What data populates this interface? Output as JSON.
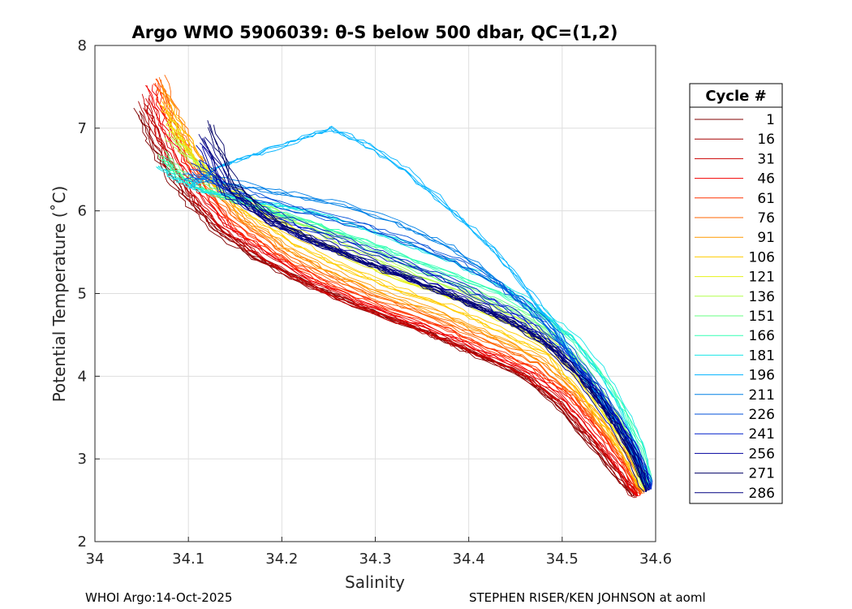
{
  "chart_data": {
    "type": "line",
    "title": "Argo WMO 5906039: θ-S below 500 dbar,  QC=(1,2)",
    "xlabel": "Salinity",
    "ylabel": "Potential Temperature (˚C)",
    "xlim": [
      34,
      34.6
    ],
    "ylim": [
      2,
      8
    ],
    "xticks": [
      34,
      34.1,
      34.2,
      34.3,
      34.4,
      34.5,
      34.6
    ],
    "xtick_labels": [
      "34",
      "34.1",
      "34.2",
      "34.3",
      "34.4",
      "34.5",
      "34.6"
    ],
    "yticks": [
      2,
      3,
      4,
      5,
      6,
      7,
      8
    ],
    "ytick_labels": [
      "2",
      "3",
      "4",
      "5",
      "6",
      "7",
      "8"
    ],
    "grid": true,
    "legend": {
      "title": "Cycle #",
      "placement": "outside-right",
      "entries": [
        {
          "label": "1",
          "color": "#800000"
        },
        {
          "label": "16",
          "color": "#a60000"
        },
        {
          "label": "31",
          "color": "#cc0000"
        },
        {
          "label": "46",
          "color": "#f20000"
        },
        {
          "label": "61",
          "color": "#ff3300"
        },
        {
          "label": "76",
          "color": "#ff6600"
        },
        {
          "label": "91",
          "color": "#ff9900"
        },
        {
          "label": "106",
          "color": "#ffcc00"
        },
        {
          "label": "121",
          "color": "#e6f21a"
        },
        {
          "label": "136",
          "color": "#b3ff4d"
        },
        {
          "label": "151",
          "color": "#66ff80"
        },
        {
          "label": "166",
          "color": "#33ffb3"
        },
        {
          "label": "181",
          "color": "#1ae6e6"
        },
        {
          "label": "196",
          "color": "#00b3ff"
        },
        {
          "label": "211",
          "color": "#0080e6"
        },
        {
          "label": "226",
          "color": "#0050d9"
        },
        {
          "label": "241",
          "color": "#0020cc"
        },
        {
          "label": "256",
          "color": "#00009e"
        },
        {
          "label": "271",
          "color": "#000066"
        },
        {
          "label": "286",
          "color": "#000080"
        }
      ]
    },
    "series": [
      {
        "name": "1",
        "color": "#800000",
        "x": [
          34.045,
          34.06,
          34.08,
          34.1,
          34.13,
          34.17,
          34.22,
          34.28,
          34.35,
          34.4,
          34.45,
          34.49,
          34.52,
          34.55,
          34.575
        ],
        "y": [
          7.2,
          6.8,
          6.4,
          6.1,
          5.75,
          5.45,
          5.15,
          4.85,
          4.55,
          4.3,
          4.05,
          3.7,
          3.3,
          2.9,
          2.55
        ]
      },
      {
        "name": "16",
        "color": "#a60000",
        "x": [
          34.05,
          34.065,
          34.085,
          34.105,
          34.135,
          34.175,
          34.225,
          34.285,
          34.355,
          34.405,
          34.455,
          34.495,
          34.525,
          34.555,
          34.578
        ],
        "y": [
          7.3,
          6.85,
          6.45,
          6.1,
          5.75,
          5.43,
          5.12,
          4.83,
          4.53,
          4.28,
          4.03,
          3.68,
          3.28,
          2.88,
          2.53
        ]
      },
      {
        "name": "31",
        "color": "#cc0000",
        "x": [
          34.055,
          34.07,
          34.09,
          34.11,
          34.14,
          34.18,
          34.23,
          34.29,
          34.36,
          34.41,
          34.46,
          34.5,
          34.53,
          34.56,
          34.58
        ],
        "y": [
          7.4,
          6.9,
          6.5,
          6.15,
          5.78,
          5.45,
          5.12,
          4.82,
          4.52,
          4.28,
          4.03,
          3.7,
          3.3,
          2.9,
          2.55
        ]
      },
      {
        "name": "46",
        "color": "#f20000",
        "x": [
          34.06,
          34.075,
          34.095,
          34.115,
          34.145,
          34.185,
          34.235,
          34.295,
          34.365,
          34.415,
          34.465,
          34.505,
          34.535,
          34.562,
          34.582
        ],
        "y": [
          7.5,
          7.0,
          6.55,
          6.2,
          5.8,
          5.47,
          5.14,
          4.84,
          4.55,
          4.3,
          4.06,
          3.72,
          3.32,
          2.92,
          2.55
        ]
      },
      {
        "name": "61",
        "color": "#ff3300",
        "x": [
          34.065,
          34.08,
          34.1,
          34.12,
          34.15,
          34.19,
          34.24,
          34.3,
          34.37,
          34.42,
          34.47,
          34.51,
          34.54,
          34.565,
          34.584
        ],
        "y": [
          7.55,
          7.05,
          6.6,
          6.22,
          5.83,
          5.5,
          5.17,
          4.88,
          4.6,
          4.35,
          4.1,
          3.75,
          3.35,
          2.95,
          2.57
        ]
      },
      {
        "name": "76",
        "color": "#ff6600",
        "x": [
          34.07,
          34.085,
          34.105,
          34.125,
          34.155,
          34.195,
          34.245,
          34.305,
          34.375,
          34.425,
          34.475,
          34.512,
          34.542,
          34.567,
          34.586
        ],
        "y": [
          7.6,
          7.1,
          6.65,
          6.25,
          5.87,
          5.55,
          5.22,
          4.93,
          4.65,
          4.4,
          4.15,
          3.78,
          3.38,
          2.97,
          2.58
        ]
      },
      {
        "name": "91",
        "color": "#ff9900",
        "x": [
          34.072,
          34.088,
          34.107,
          34.128,
          34.16,
          34.2,
          34.25,
          34.31,
          34.38,
          34.43,
          34.48,
          34.515,
          34.545,
          34.57,
          34.587
        ],
        "y": [
          7.5,
          7.1,
          6.7,
          6.3,
          5.92,
          5.6,
          5.28,
          5.0,
          4.72,
          4.46,
          4.2,
          3.82,
          3.4,
          3.0,
          2.6
        ]
      },
      {
        "name": "106",
        "color": "#ffcc00",
        "x": [
          34.075,
          34.09,
          34.108,
          34.13,
          34.165,
          34.21,
          34.26,
          34.32,
          34.39,
          34.44,
          34.49,
          34.52,
          34.548,
          34.572,
          34.588
        ],
        "y": [
          7.3,
          7.0,
          6.7,
          6.35,
          5.98,
          5.67,
          5.36,
          5.08,
          4.8,
          4.53,
          4.25,
          3.85,
          3.43,
          3.02,
          2.62
        ]
      },
      {
        "name": "121",
        "color": "#e6f21a",
        "x": [
          34.078,
          34.092,
          34.11,
          34.135,
          34.17,
          34.22,
          34.27,
          34.33,
          34.4,
          34.45,
          34.495,
          34.525,
          34.552,
          34.575,
          34.589
        ],
        "y": [
          7.1,
          6.85,
          6.6,
          6.35,
          6.05,
          5.75,
          5.45,
          5.16,
          4.88,
          4.6,
          4.3,
          3.9,
          3.47,
          3.05,
          2.63
        ]
      },
      {
        "name": "136",
        "color": "#b3ff4d",
        "x": [
          34.08,
          34.095,
          34.115,
          34.14,
          34.175,
          34.225,
          34.28,
          34.34,
          34.41,
          34.46,
          34.5,
          34.53,
          34.556,
          34.578,
          34.59
        ],
        "y": [
          6.9,
          6.7,
          6.5,
          6.3,
          6.08,
          5.82,
          5.52,
          5.22,
          4.93,
          4.65,
          4.35,
          3.93,
          3.5,
          3.07,
          2.64
        ]
      },
      {
        "name": "151",
        "color": "#66ff80",
        "x": [
          34.075,
          34.09,
          34.11,
          34.14,
          34.18,
          34.23,
          34.29,
          34.35,
          34.42,
          34.47,
          34.505,
          34.535,
          34.56,
          34.58,
          34.591
        ],
        "y": [
          6.7,
          6.5,
          6.35,
          6.2,
          6.05,
          5.85,
          5.58,
          5.28,
          4.98,
          4.7,
          4.4,
          3.97,
          3.53,
          3.09,
          2.65
        ]
      },
      {
        "name": "166",
        "color": "#33ffb3",
        "x": [
          34.07,
          34.085,
          34.105,
          34.135,
          34.18,
          34.235,
          34.295,
          34.36,
          34.43,
          34.475,
          34.51,
          34.54,
          34.565,
          34.583,
          34.592
        ],
        "y": [
          6.6,
          6.42,
          6.28,
          6.15,
          6.0,
          5.82,
          5.58,
          5.3,
          5.0,
          4.72,
          4.42,
          4.0,
          3.55,
          3.1,
          2.66
        ]
      },
      {
        "name": "181",
        "color": "#1ae6e6",
        "x": [
          34.07,
          34.09,
          34.11,
          34.14,
          34.19,
          34.25,
          34.31,
          34.38,
          34.44,
          34.48,
          34.515,
          34.545,
          34.568,
          34.585,
          34.593
        ],
        "y": [
          6.55,
          6.4,
          6.28,
          6.2,
          6.1,
          5.95,
          5.72,
          5.42,
          5.1,
          4.8,
          4.48,
          4.04,
          3.58,
          3.12,
          2.66
        ]
      },
      {
        "name": "196",
        "color": "#00b3ff",
        "x": [
          34.1,
          34.13,
          34.17,
          34.21,
          34.25,
          34.29,
          34.33,
          34.37,
          34.41,
          34.45,
          34.49,
          34.52,
          34.55,
          34.575,
          34.593
        ],
        "y": [
          6.3,
          6.55,
          6.7,
          6.85,
          7.0,
          6.8,
          6.5,
          6.1,
          5.7,
          5.2,
          4.6,
          4.0,
          3.55,
          3.1,
          2.66
        ]
      },
      {
        "name": "211",
        "color": "#0080e6",
        "x": [
          34.1,
          34.13,
          34.17,
          34.22,
          34.28,
          34.33,
          34.38,
          34.42,
          34.45,
          34.48,
          34.51,
          34.535,
          34.56,
          34.58,
          34.594
        ],
        "y": [
          6.4,
          6.4,
          6.3,
          6.2,
          6.05,
          5.85,
          5.6,
          5.3,
          5.0,
          4.7,
          4.3,
          3.9,
          3.5,
          3.08,
          2.65
        ]
      },
      {
        "name": "226",
        "color": "#0050d9",
        "x": [
          34.105,
          34.14,
          34.18,
          34.23,
          34.29,
          34.34,
          34.39,
          34.43,
          34.46,
          34.49,
          34.515,
          34.54,
          34.562,
          34.582,
          34.595
        ],
        "y": [
          6.5,
          6.3,
          6.15,
          6.0,
          5.82,
          5.62,
          5.4,
          5.15,
          4.9,
          4.6,
          4.25,
          3.88,
          3.48,
          3.06,
          2.64
        ]
      },
      {
        "name": "241",
        "color": "#0020cc",
        "x": [
          34.11,
          34.14,
          34.18,
          34.22,
          34.27,
          34.32,
          34.37,
          34.41,
          34.45,
          34.48,
          34.51,
          34.537,
          34.56,
          34.58,
          34.594
        ],
        "y": [
          6.6,
          6.25,
          6.0,
          5.82,
          5.62,
          5.42,
          5.2,
          4.98,
          4.75,
          4.5,
          4.18,
          3.83,
          3.45,
          3.05,
          2.63
        ]
      },
      {
        "name": "256",
        "color": "#00009e",
        "x": [
          34.11,
          34.14,
          34.18,
          34.22,
          34.27,
          34.32,
          34.37,
          34.41,
          34.45,
          34.48,
          34.51,
          34.535,
          34.558,
          34.578,
          34.592
        ],
        "y": [
          6.8,
          6.2,
          5.9,
          5.7,
          5.48,
          5.28,
          5.05,
          4.85,
          4.65,
          4.42,
          4.12,
          3.8,
          3.42,
          3.03,
          2.62
        ]
      },
      {
        "name": "271",
        "color": "#000066",
        "x": [
          34.12,
          34.15,
          34.19,
          34.23,
          34.28,
          34.33,
          34.38,
          34.42,
          34.455,
          34.485,
          34.51,
          34.534,
          34.556,
          34.576,
          34.59
        ],
        "y": [
          7.05,
          6.3,
          5.9,
          5.65,
          5.42,
          5.2,
          4.98,
          4.78,
          4.6,
          4.38,
          4.1,
          3.78,
          3.4,
          3.02,
          2.61
        ]
      },
      {
        "name": "286",
        "color": "#000080",
        "x": [
          34.115,
          34.145,
          34.185,
          34.225,
          34.275,
          34.325,
          34.375,
          34.415,
          34.45,
          34.48,
          34.508,
          34.532,
          34.555,
          34.575,
          34.589
        ],
        "y": [
          6.9,
          6.25,
          5.88,
          5.66,
          5.44,
          5.22,
          5.0,
          4.8,
          4.62,
          4.4,
          4.1,
          3.78,
          3.4,
          3.02,
          2.6
        ]
      }
    ]
  },
  "footer": {
    "left": "WHOI Argo:14-Oct-2025",
    "right": "STEPHEN RISER/KEN JOHNSON at aoml"
  }
}
